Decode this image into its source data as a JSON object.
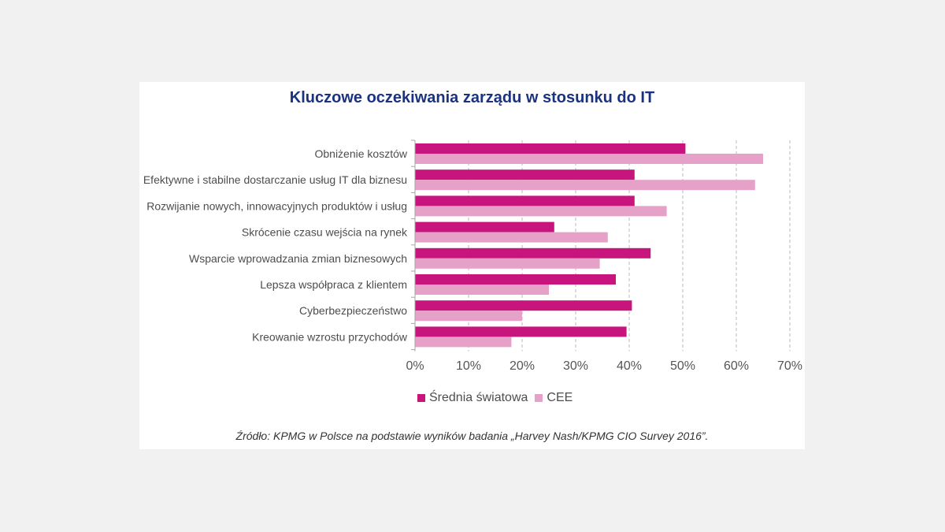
{
  "chart_data": {
    "type": "bar",
    "title": "Kluczowe oczekiwania zarządu w stosunku do IT",
    "categories": [
      "Obniżenie kosztów",
      "Efektywne i stabilne dostarczanie usług IT dla biznesu",
      "Rozwijanie nowych, innowacyjnych produktów i usług",
      "Skrócenie czasu wejścia na rynek",
      "Wsparcie wprowadzania zmian biznesowych",
      "Lepsza współpraca z klientem",
      "Cyberbezpieczeństwo",
      "Kreowanie wzrostu przychodów"
    ],
    "series": [
      {
        "name": "Średnia światowa",
        "color": "#c8157e",
        "values": [
          50.5,
          41,
          41,
          26,
          44,
          37.5,
          40.5,
          39.5
        ]
      },
      {
        "name": "CEE",
        "color": "#e6a1c8",
        "values": [
          65,
          63.5,
          47,
          36,
          34.5,
          25,
          20,
          18
        ]
      }
    ],
    "xlim": [
      0,
      70
    ],
    "xticks": [
      0,
      10,
      20,
      30,
      40,
      50,
      60,
      70
    ],
    "xtick_labels": [
      "0%",
      "10%",
      "20%",
      "30%",
      "40%",
      "50%",
      "60%",
      "70%"
    ],
    "grid": true,
    "legend_position": "bottom",
    "source": "Źródło: KPMG w Polsce na podstawie wyników badania „Harvey Nash/KPMG CIO Survey 2016”."
  }
}
